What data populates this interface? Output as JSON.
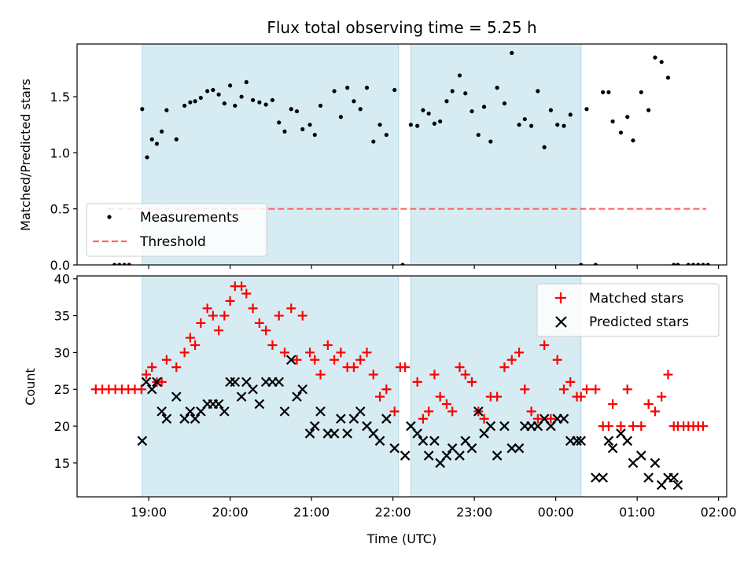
{
  "figure": {
    "title": "Flux total observing time = 5.25 h",
    "xlabel": "Time (UTC)",
    "colors": {
      "shade": "#add8e6",
      "threshold": "#ff6666",
      "matched": "#ff0000",
      "predicted": "#000000",
      "measure": "#000000"
    }
  },
  "chart_data": [
    {
      "type": "scatter",
      "panel": "top",
      "title": "Flux total observing time = 5.25 h",
      "ylabel": "Matched/Predicted stars",
      "ylim": [
        0,
        1.97
      ],
      "yticks": [
        0.0,
        0.5,
        1.0,
        1.5
      ],
      "ytick_labels": [
        "0.0",
        "0.5",
        "1.0",
        "1.5"
      ],
      "xlim": [
        18.12,
        26.1
      ],
      "xticks": [
        19,
        20,
        21,
        22,
        23,
        24,
        25,
        26
      ],
      "legend": {
        "position": "lower-left",
        "entries": [
          "Measurements",
          "Threshold"
        ]
      },
      "shaded_intervals": [
        [
          18.92,
          22.07
        ],
        [
          22.22,
          24.31
        ]
      ],
      "series": [
        {
          "name": "Measurements",
          "kind": "points",
          "x": [
            18.58,
            18.64,
            18.7,
            18.76,
            18.92,
            18.98,
            19.04,
            19.1,
            19.16,
            19.22,
            19.34,
            19.44,
            19.51,
            19.57,
            19.64,
            19.72,
            19.79,
            19.86,
            19.93,
            20.0,
            20.06,
            20.14,
            20.2,
            20.28,
            20.36,
            20.44,
            20.52,
            20.6,
            20.67,
            20.75,
            20.82,
            20.89,
            20.98,
            21.04,
            21.11,
            21.28,
            21.36,
            21.44,
            21.52,
            21.6,
            21.68,
            21.76,
            21.84,
            21.92,
            22.02,
            22.12,
            22.22,
            22.3,
            22.37,
            22.44,
            22.51,
            22.58,
            22.66,
            22.73,
            22.82,
            22.89,
            22.97,
            23.05,
            23.12,
            23.2,
            23.28,
            23.37,
            23.46,
            23.55,
            23.62,
            23.7,
            23.78,
            23.86,
            23.94,
            24.02,
            24.1,
            24.18,
            24.31,
            24.38,
            24.49,
            24.58,
            24.65,
            24.7,
            24.8,
            24.88,
            24.95,
            25.05,
            25.14,
            25.22,
            25.3,
            25.38,
            25.45,
            25.5,
            25.63,
            25.69,
            25.75,
            25.81,
            25.87
          ],
          "y": [
            0,
            0,
            0,
            0,
            1.39,
            0.96,
            1.12,
            1.08,
            1.19,
            1.38,
            1.12,
            1.42,
            1.45,
            1.46,
            1.49,
            1.55,
            1.56,
            1.52,
            1.44,
            1.6,
            1.42,
            1.5,
            1.63,
            1.47,
            1.45,
            1.43,
            1.47,
            1.27,
            1.19,
            1.39,
            1.37,
            1.21,
            1.25,
            1.16,
            1.42,
            1.55,
            1.32,
            1.58,
            1.46,
            1.39,
            1.58,
            1.1,
            1.25,
            1.16,
            1.56,
            0,
            1.25,
            1.24,
            1.38,
            1.35,
            1.26,
            1.28,
            1.46,
            1.55,
            1.69,
            1.53,
            1.37,
            1.16,
            1.41,
            1.1,
            1.58,
            1.44,
            1.89,
            1.25,
            1.3,
            1.24,
            1.55,
            1.05,
            1.38,
            1.25,
            1.24,
            1.34,
            0,
            1.39,
            0,
            1.54,
            1.54,
            1.28,
            1.18,
            1.32,
            1.11,
            1.54,
            1.38,
            1.85,
            1.81,
            1.67,
            0,
            0,
            0,
            0,
            0,
            0,
            0
          ]
        },
        {
          "name": "Threshold",
          "kind": "dashed-line",
          "x": [
            18.5,
            25.85
          ],
          "y": [
            0.5,
            0.5
          ]
        }
      ]
    },
    {
      "type": "scatter",
      "panel": "bottom",
      "xlabel": "Time (UTC)",
      "ylabel": "Count",
      "ylim": [
        10.4,
        40.4
      ],
      "yticks": [
        15,
        20,
        25,
        30,
        35,
        40
      ],
      "ytick_labels": [
        "15",
        "20",
        "25",
        "30",
        "35",
        "40"
      ],
      "xlim": [
        18.12,
        26.1
      ],
      "xticks": [
        19,
        20,
        21,
        22,
        23,
        24,
        25,
        26
      ],
      "xtick_labels": [
        "19:00",
        "20:00",
        "21:00",
        "22:00",
        "23:00",
        "00:00",
        "01:00",
        "02:00"
      ],
      "legend": {
        "position": "top-right",
        "entries": [
          "Matched stars",
          "Predicted stars"
        ]
      },
      "shaded_intervals": [
        [
          18.92,
          22.07
        ],
        [
          22.22,
          24.31
        ]
      ],
      "series": [
        {
          "name": "Matched stars",
          "marker": "plus",
          "x": [
            18.35,
            18.43,
            18.51,
            18.59,
            18.67,
            18.75,
            18.83,
            18.91,
            18.97,
            19.04,
            19.1,
            19.16,
            19.22,
            19.34,
            19.44,
            19.51,
            19.57,
            19.64,
            19.72,
            19.79,
            19.86,
            19.93,
            20.0,
            20.06,
            20.14,
            20.2,
            20.28,
            20.36,
            20.44,
            20.52,
            20.6,
            20.67,
            20.75,
            20.82,
            20.89,
            20.98,
            21.04,
            21.11,
            21.2,
            21.28,
            21.36,
            21.44,
            21.52,
            21.6,
            21.68,
            21.76,
            21.84,
            21.92,
            22.02,
            22.09,
            22.15,
            22.3,
            22.37,
            22.44,
            22.51,
            22.58,
            22.66,
            22.73,
            22.82,
            22.89,
            22.97,
            23.05,
            23.12,
            23.2,
            23.28,
            23.37,
            23.46,
            23.55,
            23.62,
            23.7,
            23.78,
            23.86,
            23.94,
            24.02,
            24.1,
            24.18,
            24.26,
            24.31,
            24.38,
            24.49,
            24.58,
            24.65,
            24.7,
            24.8,
            24.88,
            24.95,
            25.05,
            25.14,
            25.22,
            25.3,
            25.38,
            25.45,
            25.5,
            25.57,
            25.63,
            25.69,
            25.75,
            25.81
          ],
          "y": [
            25,
            25,
            25,
            25,
            25,
            25,
            25,
            25,
            27,
            28,
            26,
            26,
            29,
            28,
            30,
            32,
            31,
            34,
            36,
            35,
            33,
            35,
            37,
            39,
            39,
            38,
            36,
            34,
            33,
            31,
            35,
            30,
            36,
            29,
            35,
            30,
            29,
            27,
            31,
            29,
            30,
            28,
            28,
            29,
            30,
            27,
            24,
            25,
            22,
            28,
            28,
            26,
            21,
            22,
            27,
            24,
            23,
            22,
            28,
            27,
            26,
            22,
            21,
            24,
            24,
            28,
            29,
            30,
            25,
            22,
            21,
            31,
            21,
            29,
            25,
            26,
            24,
            24,
            25,
            25,
            20,
            20,
            23,
            20,
            25,
            20,
            20,
            23,
            22,
            24,
            27,
            20,
            20,
            20,
            20,
            20,
            20,
            20
          ]
        },
        {
          "name": "Predicted stars",
          "marker": "x",
          "x": [
            18.92,
            18.97,
            19.04,
            19.1,
            19.16,
            19.22,
            19.34,
            19.44,
            19.51,
            19.57,
            19.64,
            19.72,
            19.79,
            19.86,
            19.93,
            20.0,
            20.06,
            20.14,
            20.2,
            20.28,
            20.36,
            20.44,
            20.52,
            20.6,
            20.67,
            20.75,
            20.82,
            20.89,
            20.98,
            21.04,
            21.11,
            21.2,
            21.28,
            21.36,
            21.44,
            21.52,
            21.6,
            21.68,
            21.76,
            21.84,
            21.92,
            22.02,
            22.15,
            22.22,
            22.3,
            22.37,
            22.44,
            22.51,
            22.58,
            22.66,
            22.73,
            22.82,
            22.89,
            22.97,
            23.05,
            23.12,
            23.2,
            23.28,
            23.37,
            23.46,
            23.55,
            23.62,
            23.7,
            23.78,
            23.86,
            23.94,
            24.02,
            24.1,
            24.18,
            24.26,
            24.31,
            24.49,
            24.58,
            24.65,
            24.7,
            24.8,
            24.88,
            24.95,
            25.05,
            25.14,
            25.22,
            25.3,
            25.38,
            25.45,
            25.5
          ],
          "y": [
            18,
            26,
            25,
            26,
            22,
            21,
            24,
            21,
            22,
            21,
            22,
            23,
            23,
            23,
            22,
            26,
            26,
            24,
            26,
            25,
            23,
            26,
            26,
            26,
            22,
            29,
            24,
            25,
            19,
            20,
            22,
            19,
            19,
            21,
            19,
            21,
            22,
            20,
            19,
            18,
            21,
            17,
            16,
            20,
            19,
            18,
            16,
            18,
            15,
            16,
            17,
            16,
            18,
            17,
            22,
            19,
            20,
            16,
            20,
            17,
            17,
            20,
            20,
            20,
            21,
            20,
            21,
            21,
            18,
            18,
            18,
            13,
            13,
            18,
            17,
            19,
            18,
            15,
            16,
            13,
            15,
            12,
            13,
            13,
            12
          ]
        }
      ]
    }
  ]
}
